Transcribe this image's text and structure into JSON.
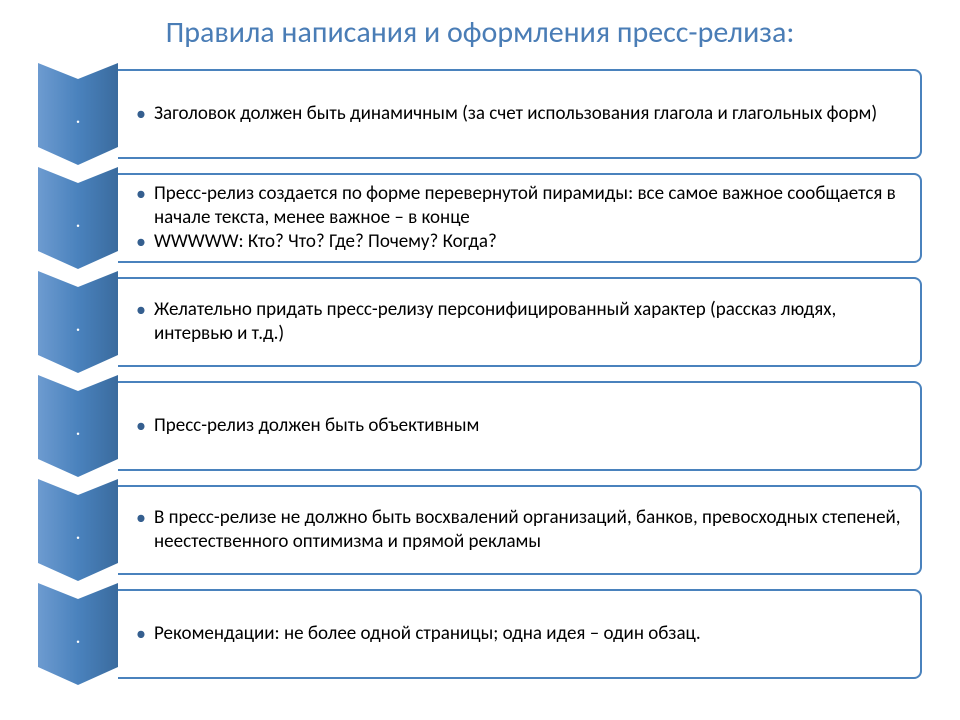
{
  "slide": {
    "title": "Правила написания и оформления пресс-релиза:",
    "title_color": "#4a7db6",
    "background_color": "#ffffff",
    "chevron_fill": "#4a82bd",
    "chevron_dark": "#3a6b9e",
    "chevron_light": "#6d9bd0",
    "border_color": "#4a82bd",
    "bullet_color": "#355f8f",
    "text_color": "#000000",
    "block_height": 90,
    "chevron_width": 80,
    "font_family": "Calibri, Arial, sans-serif",
    "title_fontsize": 30,
    "item_fontsize": 19,
    "blocks": [
      {
        "marker": ".",
        "items": [
          "Заголовок должен быть динамичным (за счет использования глагола и глагольных форм)"
        ]
      },
      {
        "marker": ".",
        "items": [
          "Пресс-релиз создается по форме перевернутой пирамиды: все самое важное сообщается в начале текста, менее важное – в конце",
          "WWWWW: Кто? Что? Где? Почему? Когда?"
        ]
      },
      {
        "marker": ".",
        "items": [
          "Желательно придать пресс-релизу персонифицированный характер (рассказ людях, интервью и т.д.)"
        ]
      },
      {
        "marker": ".",
        "items": [
          "Пресс-релиз должен быть объективным"
        ]
      },
      {
        "marker": ".",
        "items": [
          "В пресс-релизе не должно быть восхвалений организаций, банков, превосходных степеней, неестественного оптимизма и прямой рекламы"
        ]
      },
      {
        "marker": ".",
        "items": [
          "Рекомендации: не более одной страницы; одна идея – один обзац."
        ]
      }
    ]
  }
}
